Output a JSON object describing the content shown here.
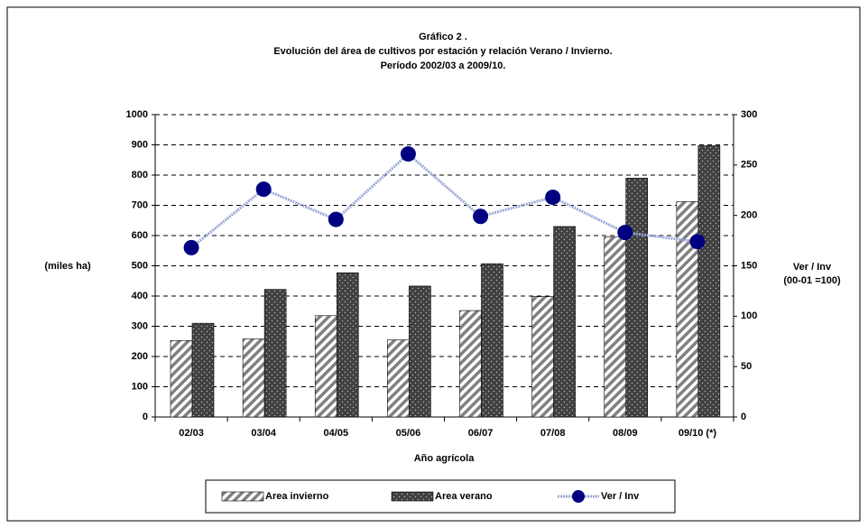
{
  "chart_data": {
    "type": "bar_line",
    "title": [
      "Gráfico 2 .",
      "Evolución del área de cultivos por estación y relación Verano / Invierno.",
      "Período 2002/03 a 2009/10."
    ],
    "ylabel": "(miles ha)",
    "y2label": [
      "Ver / Inv",
      "(00-01 =100)"
    ],
    "xlabel": "Año agrícola",
    "categories": [
      "02/03",
      "03/04",
      "04/05",
      "05/06",
      "06/07",
      "07/08",
      "08/09",
      "09/10 (*)"
    ],
    "series": [
      {
        "name": "Area invierno",
        "type": "bar",
        "color": "#808080",
        "values": [
          253,
          258,
          335,
          255,
          352,
          398,
          595,
          712
        ]
      },
      {
        "name": "Area verano",
        "type": "bar",
        "color": "#404040",
        "values": [
          310,
          422,
          477,
          433,
          507,
          630,
          790,
          897
        ]
      },
      {
        "name": "Ver / Inv",
        "type": "line",
        "axis": "y2",
        "color": "#000080",
        "values": [
          168,
          226,
          196,
          261,
          199,
          218,
          183,
          174
        ]
      }
    ],
    "ylim": [
      0,
      1000
    ],
    "yticks": [
      0,
      100,
      200,
      300,
      400,
      500,
      600,
      700,
      800,
      900,
      1000
    ],
    "y2lim": [
      0,
      300
    ],
    "y2ticks": [
      0,
      50,
      100,
      150,
      200,
      250,
      300
    ],
    "grid": true,
    "legend": "bottom"
  }
}
